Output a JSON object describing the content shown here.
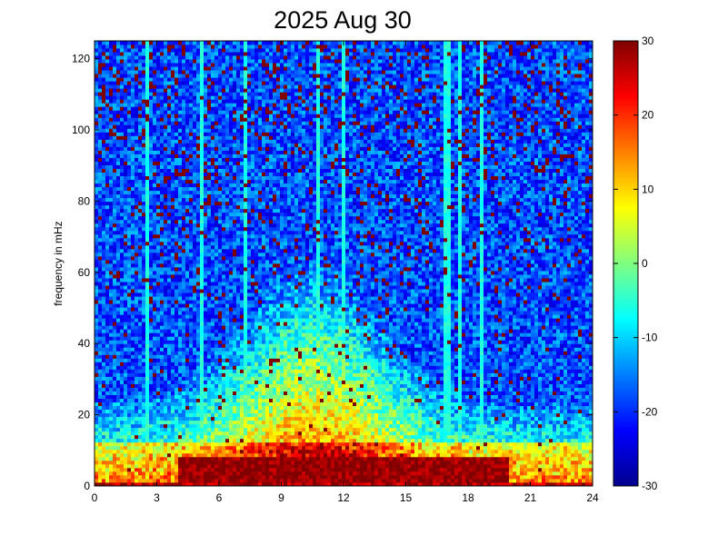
{
  "chart_data": {
    "type": "heatmap",
    "title": "2025 Aug 30",
    "xlabel": "",
    "ylabel": "frequency in mHz",
    "x_ticks": [
      "0",
      "3",
      "6",
      "9",
      "12",
      "15",
      "18",
      "21",
      "24"
    ],
    "y_ticks": [
      "0",
      "20",
      "40",
      "60",
      "80",
      "100",
      "120"
    ],
    "xlim": [
      0,
      24
    ],
    "ylim": [
      0,
      125
    ],
    "colorbar": {
      "ticks": [
        "30",
        "20",
        "10",
        "0",
        "-10",
        "-20",
        "-30"
      ],
      "range": [
        -30,
        30
      ],
      "colormap": "jet"
    },
    "grid": false,
    "description_of_pattern": {
      "low_frequency_band_mhz": [
        0,
        8
      ],
      "low_band_level": 25,
      "broadband_activity_hours": [
        6,
        15
      ],
      "broadband_activity_max_mhz": 65,
      "background_level": -18,
      "vertical_streak_hours": [
        2.5,
        5.2,
        7.3,
        10.8,
        12,
        17,
        17.6,
        18.6
      ]
    }
  }
}
